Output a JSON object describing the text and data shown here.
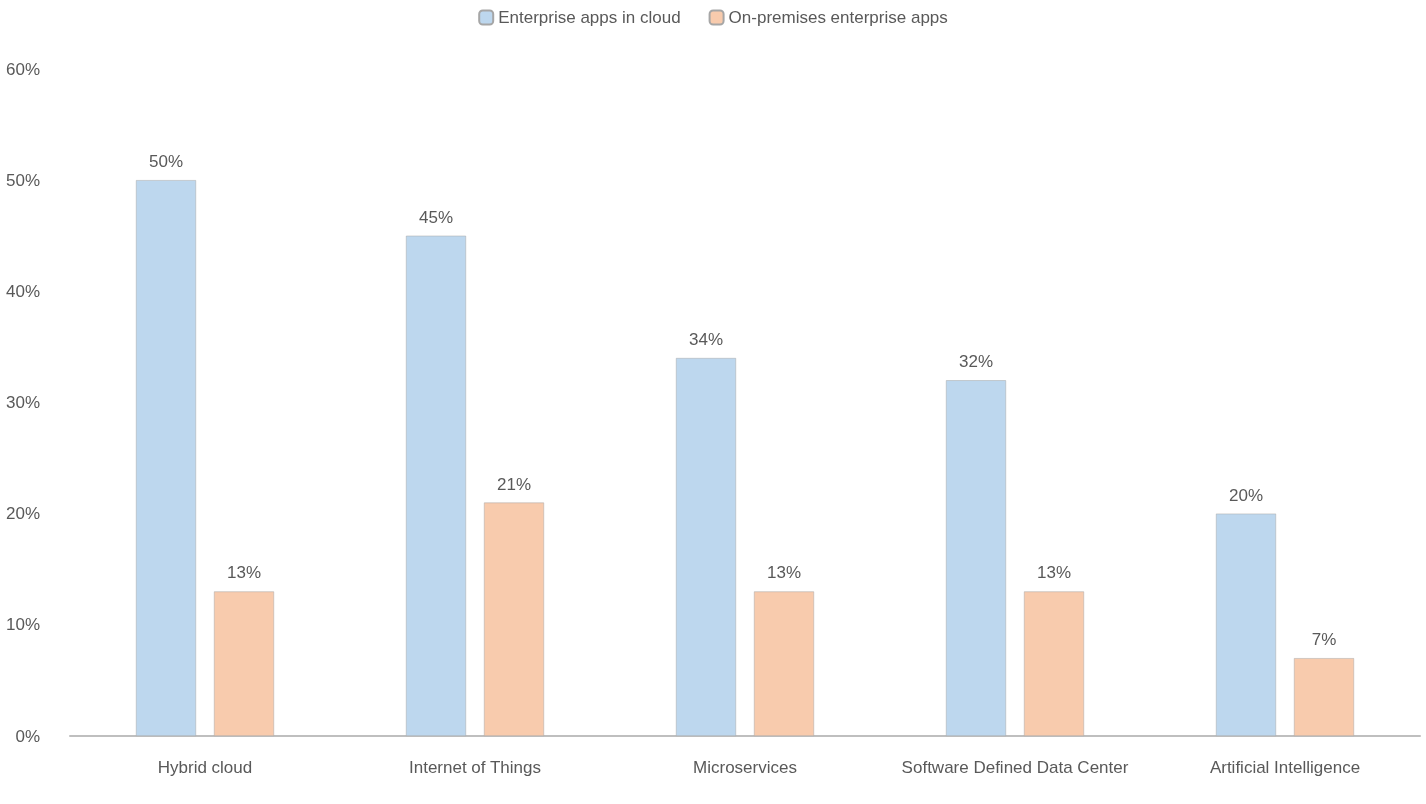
{
  "chart_data": {
    "type": "bar",
    "categories": [
      "Hybrid cloud",
      "Internet of Things",
      "Microservices",
      "Software Defined Data Center",
      "Artificial Intelligence"
    ],
    "series": [
      {
        "name": "Enterprise apps in cloud",
        "color": "#bdd7ee",
        "values": [
          50,
          45,
          34,
          32,
          20
        ],
        "value_labels": [
          "50%",
          "45%",
          "34%",
          "32%",
          "20%"
        ]
      },
      {
        "name": "On-premises enterprise apps",
        "color": "#f8cbad",
        "values": [
          13,
          21,
          13,
          13,
          7
        ],
        "value_labels": [
          "13%",
          "21%",
          "13%",
          "13%",
          "7%"
        ]
      }
    ],
    "ylim": [
      0,
      60
    ],
    "yticks": [
      {
        "value": 0,
        "label": "0%"
      },
      {
        "value": 10,
        "label": "10%"
      },
      {
        "value": 20,
        "label": "20%"
      },
      {
        "value": 30,
        "label": "30%"
      },
      {
        "value": 40,
        "label": "40%"
      },
      {
        "value": 50,
        "label": "50%"
      },
      {
        "value": 60,
        "label": "60%"
      }
    ],
    "grid": false,
    "legend": "top"
  }
}
